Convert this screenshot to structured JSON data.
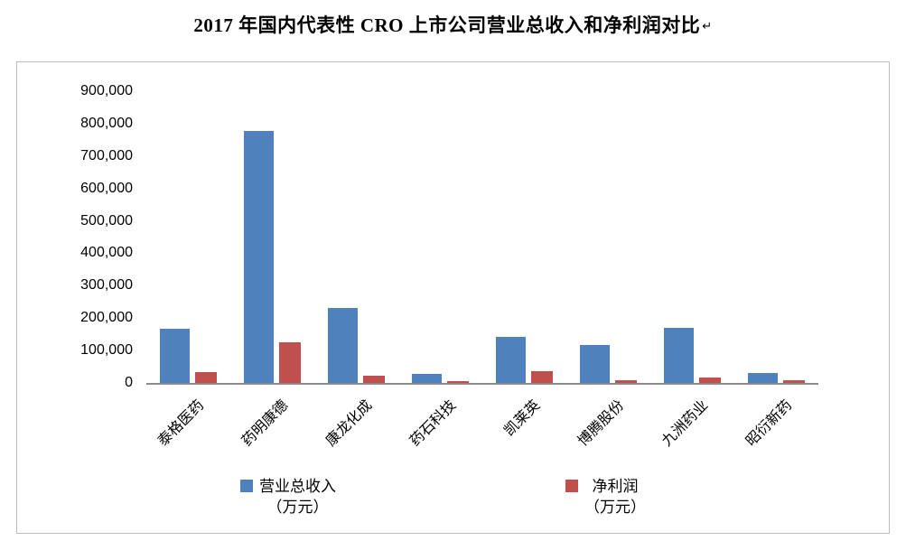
{
  "page": {
    "title": "2017 年国内代表性 CRO 上市公司营业总收入和净利润对比",
    "title_mark": "↵"
  },
  "chart_data": {
    "type": "bar",
    "title": "2017 年国内代表性 CRO 上市公司营业总收入和净利润对比",
    "categories": [
      "泰格医药",
      "药明康德",
      "康龙化成",
      "药石科技",
      "凯莱英",
      "博腾股份",
      "九洲药业",
      "昭衍新药"
    ],
    "series": [
      {
        "name": "营业总收入（万元）",
        "color": "#4f81bd",
        "values": [
          168000,
          777000,
          230000,
          28000,
          142000,
          116000,
          170000,
          30000
        ]
      },
      {
        "name": "净利润（万元）",
        "color": "#c0504d",
        "values": [
          33000,
          125000,
          22000,
          5000,
          36000,
          9000,
          17000,
          9000
        ]
      }
    ],
    "xlabel": "",
    "ylabel": "",
    "ylim": [
      0,
      900000
    ],
    "y_ticks": [
      "900,000",
      "800,000",
      "700,000",
      "600,000",
      "500,000",
      "400,000",
      "300,000",
      "200,000",
      "100,000",
      "0"
    ],
    "grid": false,
    "legend_position": "bottom",
    "legend": [
      {
        "line1": "营业总收入",
        "line2": "（万元）",
        "color": "#4f81bd"
      },
      {
        "line1": "净利润",
        "line2": "（万元）",
        "color": "#c0504d"
      }
    ]
  }
}
